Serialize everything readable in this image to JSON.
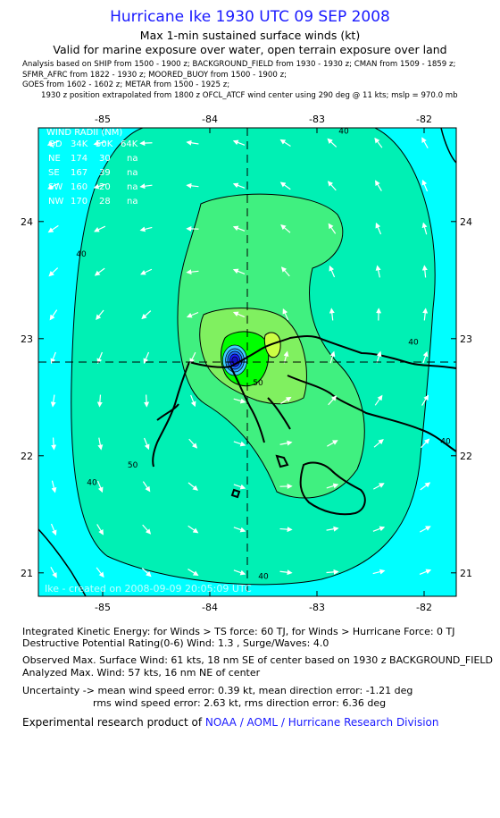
{
  "title": "Hurricane Ike 1930 UTC 09 SEP 2008",
  "subtitle1": "Max 1-min sustained surface winds (kt)",
  "subtitle2": "Valid for marine exposure over water, open terrain exposure over land",
  "analysis_lines": [
    "Analysis based on  SHIP from 1500 - 1900 z;  BACKGROUND_FIELD from 1930 - 1930 z;  CMAN from 1509 - 1859 z;",
    "SFMR_AFRC from 1822 - 1930 z;  MOORED_BUOY from 1500 - 1900 z;",
    "GOES from 1602 - 1602 z;  METAR from 1500 - 1925 z;",
    "1930 z position extrapolated from 1800 z OFCL_ATCF wind center using 290 deg @ 11 kts; mslp = 970.0 mb"
  ],
  "wind_radii": {
    "title": "WIND RADII (NM)",
    "header": [
      "QD",
      "34K",
      "50K",
      "64K"
    ],
    "rows": [
      [
        "NE",
        "174",
        "30",
        "na"
      ],
      [
        "SE",
        "167",
        "39",
        "na"
      ],
      [
        "SW",
        "160",
        "20",
        "na"
      ],
      [
        "NW",
        "170",
        "28",
        "na"
      ]
    ]
  },
  "watermark": "Ike - created on 2008-09-09 20:05:09 UTC",
  "footer": {
    "ike": "Integrated Kinetic Energy:  for Winds > TS force: 60 TJ,  for Winds > Hurricane Force: 0 TJ",
    "dpr": "Destructive Potential Rating(0-6)   Wind: 1.3 , Surge/Waves: 4.0",
    "observed": "Observed Max. Surface Wind: 61 kts, 18 nm SE of center based on 1930 z BACKGROUND_FIELD",
    "analyzed": "Analyzed Max. Wind: 57 kts, 16 nm NE of center",
    "uncert1": "Uncertainty -> mean wind speed error: 0.39 kt,   mean direction error:  -1.21 deg",
    "uncert2": "rms wind speed error: 2.63 kt,   rms direction error: 6.36 deg",
    "experimental": "Experimental research product of ",
    "org": "NOAA / AOML / Hurricane Research Division"
  },
  "chart_data": {
    "type": "contour map",
    "x_ticks": [
      -85,
      -84,
      -83,
      -82
    ],
    "y_ticks": [
      21,
      22,
      23,
      24
    ],
    "xlim": [
      -85.6,
      -81.7
    ],
    "ylim": [
      20.8,
      24.8
    ],
    "center": {
      "lon": -83.75,
      "lat": 22.8
    },
    "contour_labels": [
      {
        "text": "40",
        "lon": -82.75,
        "lat": 24.75
      },
      {
        "text": "40",
        "lon": -85.2,
        "lat": 23.7
      },
      {
        "text": "40",
        "lon": -82.1,
        "lat": 22.95
      },
      {
        "text": "40",
        "lon": -81.8,
        "lat": 22.1
      },
      {
        "text": "40",
        "lon": -85.1,
        "lat": 21.75
      },
      {
        "text": "40",
        "lon": -83.5,
        "lat": 20.95
      },
      {
        "text": "50",
        "lon": -83.55,
        "lat": 22.6
      },
      {
        "text": "50",
        "lon": -84.72,
        "lat": 21.9
      }
    ],
    "colors": {
      "lt34": "#00ffff",
      "c40": "#00f0b4",
      "c50": "#40f080",
      "c55": "#80f060",
      "c60": "#00ff00",
      "c65": "#ccff44",
      "core": "#1a1aff"
    }
  }
}
